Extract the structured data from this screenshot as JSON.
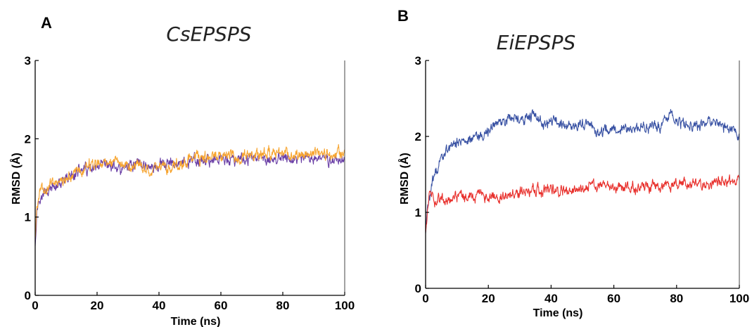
{
  "chart_data": [
    {
      "panel": "A",
      "type": "line",
      "title": "CsEPSPS",
      "xlabel": "Time (ns)",
      "ylabel": "RMSD (Å)",
      "xlim": [
        0,
        100
      ],
      "ylim": [
        0,
        3
      ],
      "xticks": [
        "0",
        "20",
        "40",
        "60",
        "80",
        "100"
      ],
      "yticks": [
        "0",
        "1",
        "2",
        "3"
      ],
      "grid": false,
      "series": [
        {
          "color": "#6a3fa6",
          "x": [
            0,
            0.5,
            1,
            2,
            3,
            5,
            7,
            10,
            12,
            15,
            18,
            20,
            22,
            25,
            28,
            30,
            33,
            35,
            38,
            40,
            45,
            50,
            55,
            60,
            65,
            70,
            75,
            80,
            85,
            90,
            95,
            100
          ],
          "y": [
            0.65,
            1.05,
            1.2,
            1.25,
            1.3,
            1.35,
            1.4,
            1.45,
            1.55,
            1.6,
            1.6,
            1.6,
            1.65,
            1.65,
            1.6,
            1.65,
            1.7,
            1.68,
            1.62,
            1.65,
            1.68,
            1.7,
            1.72,
            1.75,
            1.72,
            1.75,
            1.73,
            1.75,
            1.72,
            1.75,
            1.72,
            1.75
          ]
        },
        {
          "color": "#f7a530",
          "x": [
            0,
            0.5,
            1,
            2,
            3,
            5,
            7,
            10,
            12,
            15,
            18,
            20,
            22,
            25,
            28,
            30,
            33,
            35,
            38,
            40,
            45,
            50,
            55,
            60,
            65,
            70,
            75,
            80,
            85,
            90,
            95,
            100
          ],
          "y": [
            0.75,
            1.1,
            1.25,
            1.35,
            1.35,
            1.4,
            1.45,
            1.5,
            1.55,
            1.6,
            1.65,
            1.68,
            1.7,
            1.7,
            1.68,
            1.65,
            1.7,
            1.62,
            1.6,
            1.62,
            1.65,
            1.72,
            1.75,
            1.78,
            1.75,
            1.78,
            1.8,
            1.82,
            1.8,
            1.82,
            1.8,
            1.82
          ]
        }
      ]
    },
    {
      "panel": "B",
      "type": "line",
      "title": "EiEPSPS",
      "xlabel": "Time (ns)",
      "ylabel": "RMSD (Å)",
      "xlim": [
        0,
        100
      ],
      "ylim": [
        0,
        3
      ],
      "xticks": [
        "0",
        "20",
        "40",
        "60",
        "80",
        "100"
      ],
      "yticks": [
        "0",
        "1",
        "2",
        "3"
      ],
      "grid": false,
      "series": [
        {
          "color": "#3851a3",
          "x": [
            0,
            0.5,
            1,
            2,
            3,
            4,
            6,
            8,
            10,
            13,
            16,
            18,
            20,
            22,
            25,
            28,
            30,
            33,
            35,
            38,
            40,
            45,
            50,
            55,
            60,
            65,
            70,
            75,
            78,
            80,
            85,
            90,
            95,
            98,
            100
          ],
          "y": [
            0.75,
            1.0,
            1.15,
            1.35,
            1.5,
            1.62,
            1.78,
            1.85,
            1.92,
            1.95,
            2.0,
            2.0,
            2.05,
            2.18,
            2.2,
            2.25,
            2.22,
            2.28,
            2.25,
            2.15,
            2.2,
            2.12,
            2.18,
            2.05,
            2.1,
            2.08,
            2.12,
            2.15,
            2.3,
            2.2,
            2.15,
            2.18,
            2.15,
            2.1,
            1.98
          ]
        },
        {
          "color": "#e8302c",
          "x": [
            0,
            0.5,
            1,
            2,
            3,
            5,
            7,
            10,
            12,
            15,
            18,
            20,
            25,
            30,
            35,
            40,
            45,
            50,
            52,
            55,
            60,
            65,
            70,
            75,
            80,
            85,
            90,
            95,
            100
          ],
          "y": [
            0.75,
            1.0,
            1.2,
            1.3,
            1.15,
            1.18,
            1.15,
            1.2,
            1.22,
            1.2,
            1.25,
            1.2,
            1.22,
            1.25,
            1.28,
            1.3,
            1.28,
            1.3,
            1.38,
            1.35,
            1.32,
            1.3,
            1.35,
            1.32,
            1.38,
            1.35,
            1.38,
            1.4,
            1.45
          ]
        }
      ]
    }
  ]
}
